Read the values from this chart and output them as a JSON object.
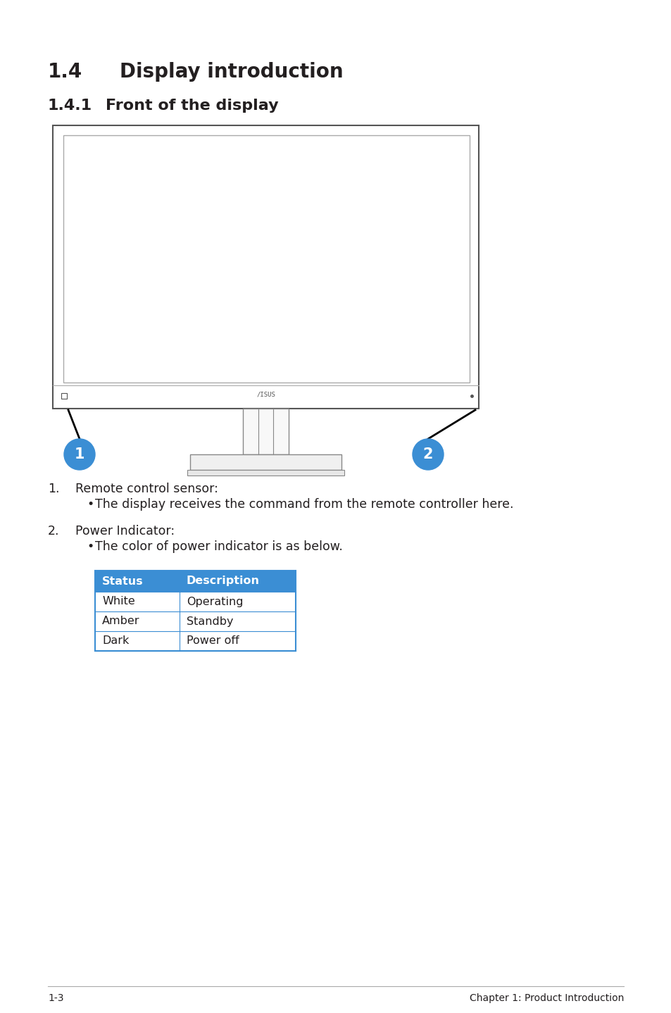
{
  "title_major": "1.4",
  "title_major_text": "Display introduction",
  "title_minor": "1.4.1",
  "title_minor_text": "Front of the display",
  "text_color": "#231f20",
  "heading_fontsize": 20,
  "subheading_fontsize": 16,
  "body_fontsize": 12.5,
  "items": [
    {
      "number": "1.",
      "label": "Remote control sensor:",
      "bullet": "The display receives the command from the remote controller here."
    },
    {
      "number": "2.",
      "label": "Power Indicator:",
      "bullet": "The color of power indicator is as below."
    }
  ],
  "table_header_bg": "#3b8ed4",
  "table_header_text_color": "#ffffff",
  "table_border_color": "#3b8ed4",
  "table_row_bg": "#ffffff",
  "table_alt_row_bg": "#dceefb",
  "table_headers": [
    "Status",
    "Description"
  ],
  "table_rows": [
    [
      "White",
      "Operating"
    ],
    [
      "Amber",
      "Standby"
    ],
    [
      "Dark",
      "Power off"
    ]
  ],
  "footer_left": "1-3",
  "footer_right": "Chapter 1: Product Introduction",
  "page_bg": "#ffffff",
  "circle_color": "#3b8ed4",
  "circle_text_color": "#ffffff",
  "line_color": "#000000",
  "monitor_border_color": "#555555",
  "monitor_screen_bg": "#ffffff"
}
